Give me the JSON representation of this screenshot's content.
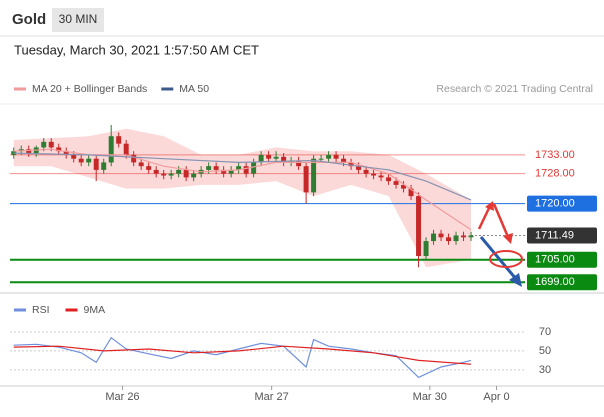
{
  "header": {
    "title": "Gold",
    "interval": "30 MIN",
    "timestamp": "Tuesday, March 30, 2021 1:57:50 AM CET",
    "credit": "Research © 2021 Trading Central"
  },
  "chart_data": [
    {
      "type": "candlestick",
      "xlim": [
        -0.5,
        68.2
      ],
      "ylim": [
        1696.4,
        1746.6
      ],
      "xticks": [
        {
          "value": 14.5,
          "label": "Mar 26"
        },
        {
          "value": 34.4,
          "label": "Mar 27"
        },
        {
          "value": 55.5,
          "label": "Mar 30"
        },
        {
          "value": 64.4,
          "label": "Apr 0"
        }
      ],
      "up_color": "#2e7d32",
      "down_color": "#c62828",
      "open": [
        1733,
        1734,
        1734.5,
        1733.5,
        1735,
        1736.5,
        1735,
        1734,
        1733,
        1732,
        1731,
        1732,
        1729,
        1731,
        1738,
        1736,
        1733,
        1731,
        1730,
        1729,
        1728,
        1727.5,
        1728,
        1729,
        1727,
        1728,
        1729,
        1730,
        1729,
        1728,
        1729,
        1730,
        1728,
        1731,
        1733,
        1732,
        1732.5,
        1731,
        1731.5,
        1730,
        1723,
        1732,
        1732,
        1733,
        1732,
        1731,
        1730,
        1729,
        1728,
        1727.5,
        1727,
        1726,
        1725,
        1724,
        1722,
        1706,
        1710,
        1712,
        1711,
        1710,
        1711.5,
        1711
      ],
      "high": [
        1735,
        1735.5,
        1735.5,
        1735.5,
        1737.5,
        1737.5,
        1736,
        1735,
        1734,
        1733,
        1733,
        1733,
        1732,
        1741,
        1739,
        1737,
        1734,
        1732,
        1731,
        1730,
        1729,
        1729,
        1730,
        1730,
        1729,
        1730,
        1731,
        1731,
        1730,
        1730,
        1731,
        1731,
        1732,
        1734,
        1734,
        1734,
        1733.5,
        1732.5,
        1732.5,
        1731,
        1733,
        1733,
        1734,
        1734,
        1733,
        1732,
        1731,
        1730,
        1729,
        1728.5,
        1728,
        1727,
        1726,
        1725,
        1723,
        1711,
        1713,
        1713,
        1712,
        1712.5,
        1712.5,
        1712.5
      ],
      "low": [
        1732,
        1733,
        1732.5,
        1732.5,
        1734,
        1734,
        1733,
        1732,
        1731,
        1730,
        1730,
        1726,
        1728,
        1730,
        1735,
        1732,
        1730,
        1729,
        1728,
        1727,
        1726.5,
        1726.5,
        1727,
        1726,
        1726,
        1727,
        1728,
        1728,
        1727,
        1727,
        1728,
        1727,
        1727,
        1730,
        1731,
        1731,
        1730,
        1730,
        1729,
        1720,
        1722,
        1731,
        1731,
        1731,
        1730,
        1729,
        1728,
        1727,
        1726.5,
        1726,
        1725,
        1724,
        1723,
        1721,
        1703,
        1705,
        1709,
        1710,
        1709,
        1709,
        1710,
        1710
      ],
      "close": [
        1734,
        1734.5,
        1733.5,
        1735,
        1736.5,
        1735,
        1734,
        1733,
        1732,
        1731,
        1732,
        1729,
        1731,
        1738,
        1736,
        1733,
        1731,
        1730,
        1729,
        1728,
        1727.5,
        1728,
        1729,
        1727,
        1728,
        1729,
        1730,
        1729,
        1728,
        1729,
        1730,
        1728,
        1731,
        1733,
        1732,
        1732.5,
        1731,
        1731.5,
        1730,
        1723,
        1732,
        1732,
        1733,
        1732,
        1731,
        1730,
        1729,
        1728,
        1727.5,
        1727,
        1726,
        1725,
        1724,
        1722,
        1706,
        1710,
        1712,
        1711,
        1710,
        1711.5,
        1711,
        1711.49
      ],
      "series": [
        {
          "name": "MA 20 + Bollinger Bands",
          "color": "#f29b9b",
          "band_color": "#fbd9d9",
          "x": [
            0,
            5,
            10,
            15,
            20,
            25,
            30,
            35,
            40,
            45,
            50,
            55,
            61
          ],
          "values": [
            1734,
            1734.5,
            1733,
            1733,
            1730,
            1728.5,
            1729,
            1731,
            1731,
            1731,
            1728,
            1721,
            1713
          ],
          "upper": [
            1737,
            1737.5,
            1738,
            1740,
            1738,
            1733,
            1733,
            1735,
            1734,
            1734,
            1733,
            1728,
            1721
          ],
          "lower": [
            1730,
            1730,
            1727,
            1724,
            1724,
            1725,
            1725,
            1726,
            1722,
            1725,
            1722,
            1703,
            1705
          ]
        },
        {
          "name": "MA 50",
          "color": "#3d5a8c",
          "line_color": "#8793b3",
          "x": [
            0,
            10,
            20,
            30,
            40,
            50,
            55,
            61
          ],
          "values": [
            1733.5,
            1733,
            1732,
            1731,
            1731.5,
            1729,
            1726,
            1721
          ]
        }
      ],
      "levels": [
        {
          "value": 1733,
          "label": "1733.00",
          "color": "#e53935",
          "boxed": false
        },
        {
          "value": 1728,
          "label": "1728.00",
          "color": "#e53935",
          "boxed": false
        },
        {
          "value": 1720,
          "label": "1720.00",
          "color": "#1e6fe0",
          "boxed": true
        },
        {
          "value": 1711.49,
          "label": "1711.49",
          "color": "#333333",
          "boxed": true
        },
        {
          "value": 1705,
          "label": "1705.00",
          "color": "#0b8a12",
          "boxed": true
        },
        {
          "value": 1699,
          "label": "1699.00",
          "color": "#0b8a12",
          "boxed": true
        }
      ]
    },
    {
      "type": "line",
      "xlim": [
        -0.5,
        68.2
      ],
      "ylim": [
        14,
        100
      ],
      "yticks": [
        30,
        50,
        70
      ],
      "series": [
        {
          "name": "RSI",
          "color": "#6f8fdc",
          "x": [
            0,
            3,
            6,
            9,
            11,
            13,
            15,
            18,
            21,
            24,
            27,
            30,
            33,
            36,
            39,
            40,
            42,
            45,
            48,
            51,
            54,
            57,
            60,
            61
          ],
          "values": [
            56,
            57,
            54,
            48,
            38,
            64,
            52,
            47,
            42,
            50,
            46,
            52,
            58,
            55,
            33,
            62,
            55,
            52,
            48,
            45,
            22,
            33,
            38,
            40
          ]
        },
        {
          "name": "9MA",
          "color": "#e02020",
          "x": [
            0,
            6,
            12,
            18,
            24,
            30,
            36,
            42,
            48,
            54,
            61
          ],
          "values": [
            54,
            55,
            50,
            52,
            48,
            50,
            55,
            52,
            48,
            40,
            36
          ]
        }
      ]
    }
  ]
}
